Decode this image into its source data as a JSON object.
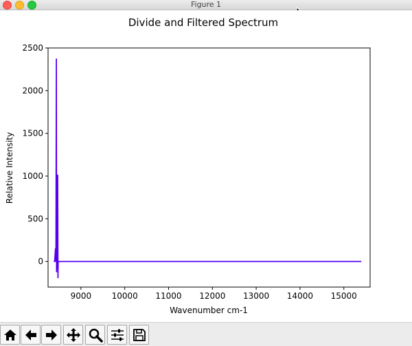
{
  "window": {
    "title": "Figure 1"
  },
  "chart_data": {
    "type": "line",
    "title": "Divide and Filtered Spectrum",
    "xlabel": "Wavenumber cm-1",
    "ylabel": "Relative Intensity",
    "xlim": [
      8250,
      15600
    ],
    "ylim": [
      -300,
      2500
    ],
    "xticks": [
      9000,
      10000,
      11000,
      12000,
      13000,
      14000,
      15000
    ],
    "yticks": [
      0,
      500,
      1000,
      1500,
      2000,
      2500
    ],
    "grid": false,
    "legend": "none",
    "colors": {
      "line": "#5500ee"
    },
    "series": [
      {
        "x": [
          8380,
          8400,
          8420,
          8430,
          8440,
          8445,
          8450,
          8455,
          8460,
          8465,
          8470,
          8475,
          8480,
          8490,
          8500,
          8520,
          8550,
          8600,
          9000,
          10000,
          11000,
          12000,
          13000,
          14000,
          15000,
          15400
        ],
        "y": [
          0,
          0,
          150,
          0,
          2370,
          -120,
          300,
          -80,
          120,
          -60,
          1010,
          -190,
          0,
          0,
          0,
          0,
          0,
          0,
          0,
          0,
          0,
          0,
          0,
          0,
          0,
          0
        ]
      }
    ]
  },
  "toolbar": {
    "buttons": [
      {
        "name": "home",
        "icon": "home-icon"
      },
      {
        "name": "back",
        "icon": "arrow-left-icon"
      },
      {
        "name": "forward",
        "icon": "arrow-right-icon"
      },
      {
        "name": "pan",
        "icon": "move-icon"
      },
      {
        "name": "zoom",
        "icon": "magnifier-icon"
      },
      {
        "name": "configure-subplots",
        "icon": "sliders-icon"
      },
      {
        "name": "save",
        "icon": "floppy-icon"
      }
    ]
  }
}
